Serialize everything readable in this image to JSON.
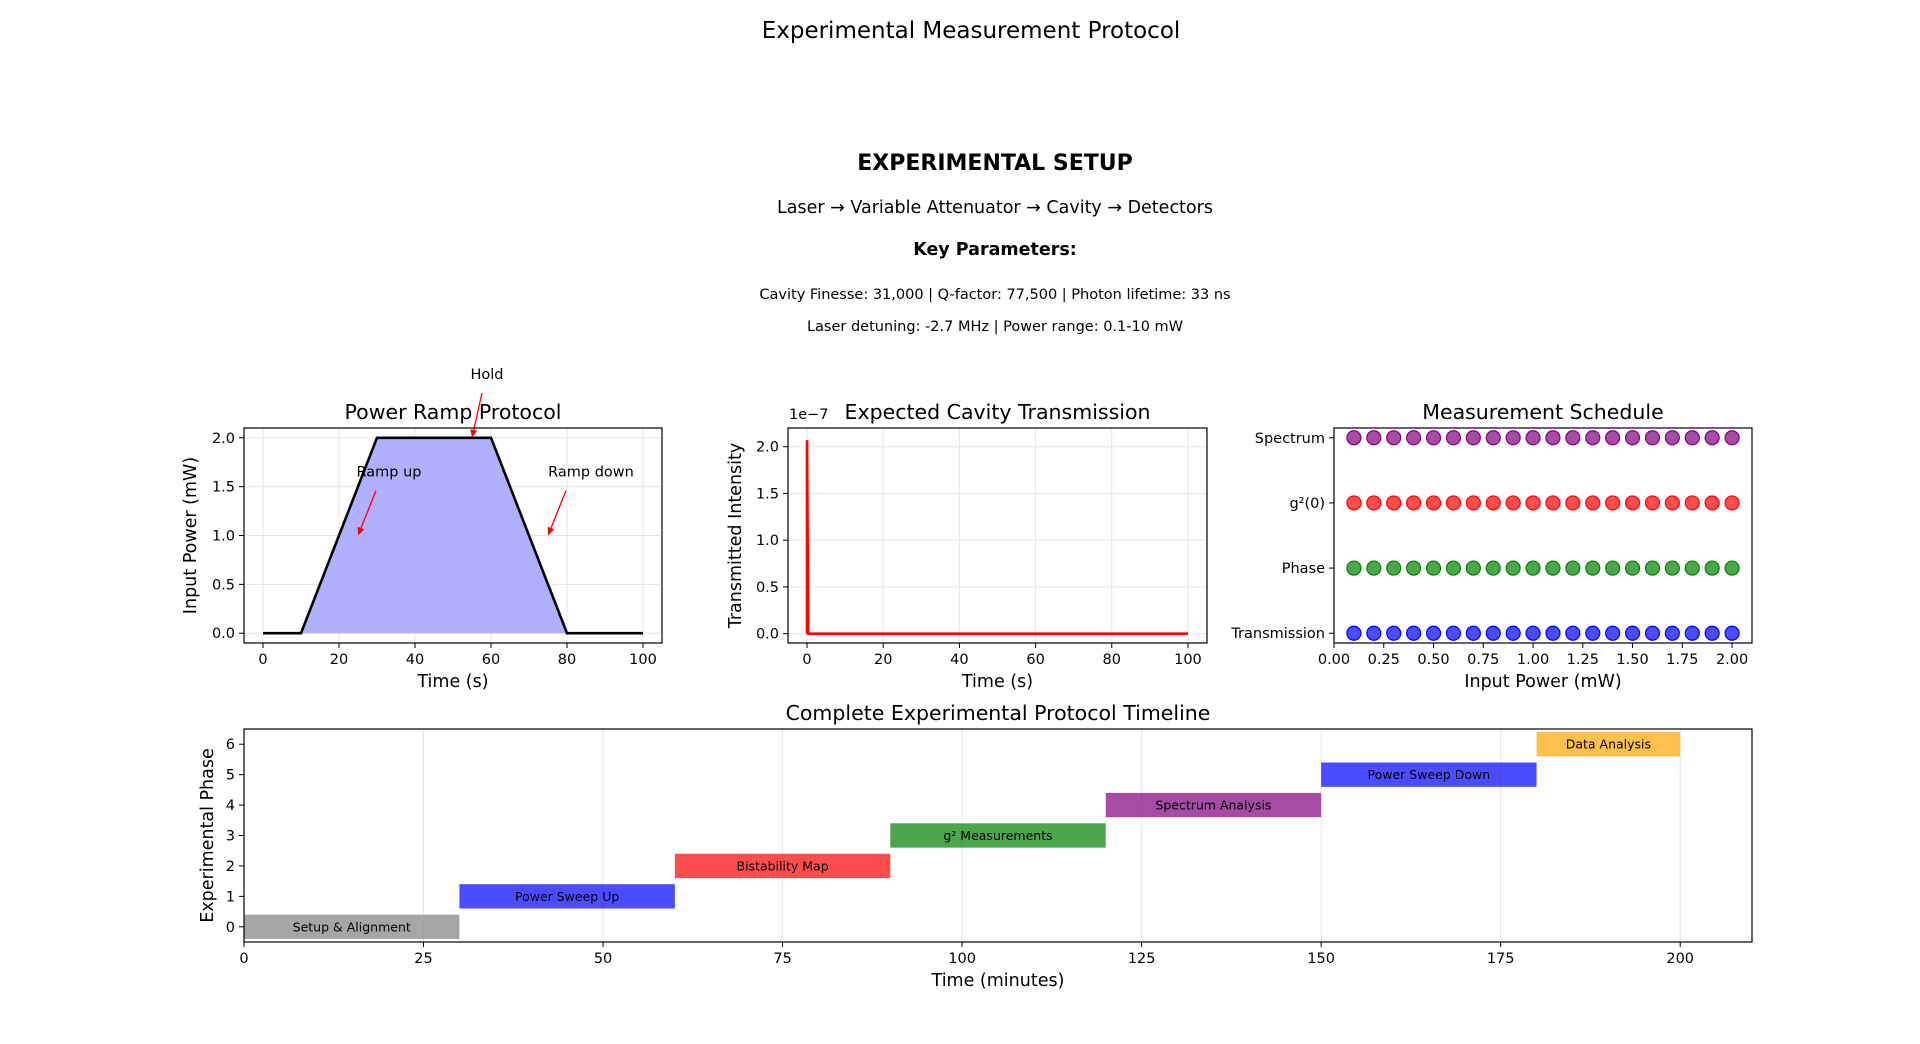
{
  "figure": {
    "suptitle": "Experimental Measurement Protocol"
  },
  "setup": {
    "title": "EXPERIMENTAL SETUP",
    "flow": "Laser → Variable Attenuator → Cavity → Detectors",
    "key_title": "Key Parameters:",
    "line1": "Cavity Finesse: 31,000 | Q-factor: 77,500 | Photon lifetime: 33 ns",
    "line2": "Laser detuning: -2.7 MHz | Power range: 0.1-10 mW"
  },
  "colors": {
    "ramp_fill": "#b0b0ff",
    "ramp_line": "#000000",
    "transmission_line": "#ff0000",
    "annotation_arrow": "#ff0000"
  },
  "chart_data": [
    {
      "id": "power-ramp",
      "type": "area",
      "title": "Power Ramp Protocol",
      "xlabel": "Time (s)",
      "ylabel": "Input Power (mW)",
      "xlim": [
        -5,
        105
      ],
      "ylim": [
        -0.1,
        2.1
      ],
      "xticks": [
        0,
        20,
        40,
        60,
        80,
        100
      ],
      "yticks": [
        0.0,
        0.5,
        1.0,
        1.5,
        2.0
      ],
      "ytick_labels": [
        "0.0",
        "0.5",
        "1.0",
        "1.5",
        "2.0"
      ],
      "grid": true,
      "x": [
        0,
        10,
        30,
        60,
        80,
        100
      ],
      "y": [
        0,
        0,
        2,
        2,
        0,
        0
      ],
      "annotations": [
        {
          "text": "Ramp up",
          "xy": [
            25,
            1.0
          ],
          "xytext": [
            25,
            1.5
          ]
        },
        {
          "text": "Hold",
          "xy": [
            55,
            2.0
          ],
          "xytext": [
            55,
            2.5
          ]
        },
        {
          "text": "Ramp down",
          "xy": [
            75,
            1.0
          ],
          "xytext": [
            75,
            1.5
          ]
        }
      ]
    },
    {
      "id": "cavity-transmission",
      "type": "line",
      "title": "Expected Cavity Transmission",
      "xlabel": "Time (s)",
      "ylabel": "Transmitted Intensity",
      "offset_label": "1e−7",
      "xlim": [
        -5,
        105
      ],
      "ylim": [
        -0.1,
        2.2
      ],
      "xticks": [
        0,
        20,
        40,
        60,
        80,
        100
      ],
      "yticks": [
        0.0,
        0.5,
        1.0,
        1.5,
        2.0
      ],
      "ytick_labels": [
        "0.0",
        "0.5",
        "1.0",
        "1.5",
        "2.0"
      ],
      "grid": true,
      "series": [
        {
          "x": [
            0,
            0,
            0.3,
            100
          ],
          "y": [
            0,
            2.07,
            0,
            0
          ]
        }
      ]
    },
    {
      "id": "measurement-schedule",
      "type": "scatter",
      "title": "Measurement Schedule",
      "xlabel": "Input Power (mW)",
      "xlim": [
        0.0,
        2.1
      ],
      "ylim": [
        -0.15,
        3.15
      ],
      "xticks": [
        0.0,
        0.25,
        0.5,
        0.75,
        1.0,
        1.25,
        1.5,
        1.75,
        2.0
      ],
      "xtick_labels": [
        "0.00",
        "0.25",
        "0.50",
        "0.75",
        "1.00",
        "1.25",
        "1.50",
        "1.75",
        "2.00"
      ],
      "categories": [
        "Transmission",
        "Phase",
        "g²(0)",
        "Spectrum"
      ],
      "grid": false,
      "x": [
        0.1,
        0.2,
        0.3,
        0.4,
        0.5,
        0.6,
        0.7,
        0.8,
        0.9,
        1.0,
        1.1,
        1.2,
        1.3,
        1.4,
        1.5,
        1.6,
        1.7,
        1.8,
        1.9,
        2.0
      ],
      "series": [
        {
          "category": "Transmission",
          "color": "#0000ff"
        },
        {
          "category": "Phase",
          "color": "#008000"
        },
        {
          "category": "g²(0)",
          "color": "#ff0000"
        },
        {
          "category": "Spectrum",
          "color": "#800080"
        }
      ]
    },
    {
      "id": "protocol-timeline",
      "type": "bar",
      "title": "Complete Experimental Protocol Timeline",
      "xlabel": "Time (minutes)",
      "ylabel": "Experimental Phase",
      "xlim": [
        0,
        210
      ],
      "ylim": [
        -0.5,
        6.5
      ],
      "xticks": [
        0,
        25,
        50,
        75,
        100,
        125,
        150,
        175,
        200
      ],
      "yticks": [
        0,
        1,
        2,
        3,
        4,
        5,
        6
      ],
      "grid": true,
      "bars": [
        {
          "label": "Setup & Alignment",
          "start": 0,
          "end": 30,
          "phase": 0,
          "color": "#808080"
        },
        {
          "label": "Power Sweep Up",
          "start": 30,
          "end": 60,
          "phase": 1,
          "color": "#0000ff"
        },
        {
          "label": "Bistability Map",
          "start": 60,
          "end": 90,
          "phase": 2,
          "color": "#ff0000"
        },
        {
          "label": "g² Measurements",
          "start": 90,
          "end": 120,
          "phase": 3,
          "color": "#008000"
        },
        {
          "label": "Spectrum Analysis",
          "start": 120,
          "end": 150,
          "phase": 4,
          "color": "#800080"
        },
        {
          "label": "Power Sweep Down",
          "start": 150,
          "end": 180,
          "phase": 5,
          "color": "#0000ff"
        },
        {
          "label": "Data Analysis",
          "start": 180,
          "end": 200,
          "phase": 6,
          "color": "#ffa500"
        }
      ]
    }
  ]
}
